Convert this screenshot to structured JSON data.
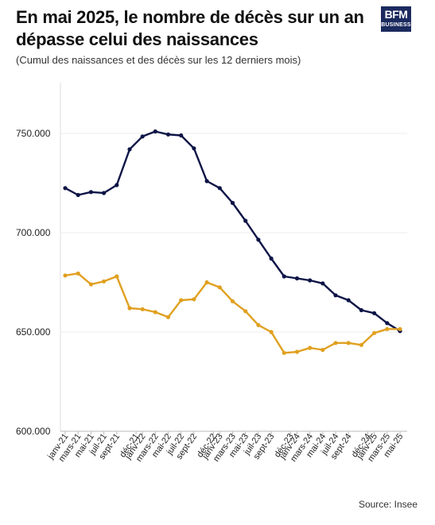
{
  "header": {
    "title": "En mai 2025, le nombre de décès sur un an dépasse celui des naissances",
    "subtitle": "(Cumul des naissances et des décès sur les 12 derniers mois)"
  },
  "logo": {
    "line1": "BFM",
    "line2": "BUSINESS",
    "background": "#1b2a5e"
  },
  "footer": {
    "source": "Source: Insee"
  },
  "chart_data": {
    "type": "line",
    "title": "En mai 2025, le nombre de décès sur un an dépasse celui des naissances",
    "subtitle": "(Cumul des naissances et des décès sur les 12 derniers mois)",
    "xlabel": "",
    "ylabel": "",
    "ylim": [
      600000,
      750000
    ],
    "yticks": [
      "600.000",
      "650.000",
      "700.000",
      "750.000"
    ],
    "y_tick_values": [
      600000,
      650000,
      700000,
      750000
    ],
    "categories": [
      "janv-21",
      "mars-21",
      "mai-21",
      "juil-21",
      "sept-21",
      "déc-21",
      "janv-22",
      "mars-22",
      "mai-22",
      "juil-22",
      "sept-22",
      "déc-22",
      "janv-23",
      "mars-23",
      "mai-23",
      "juil-23",
      "sept-23",
      "déc-23",
      "janv-24",
      "mars-24",
      "mai-24",
      "juil-24",
      "sept-24",
      "déc-24",
      "janv-25",
      "mars-25",
      "mai-25"
    ],
    "x": [
      "janv-21",
      "févr-21",
      "mars-21",
      "avr-21",
      "mai-21",
      "juin-21",
      "juil-21",
      "août-21",
      "sept-21",
      "oct-21",
      "nov-21",
      "déc-21",
      "janv-22",
      "févr-22",
      "mars-22",
      "avr-22",
      "mai-22",
      "juin-22",
      "juil-22",
      "août-22",
      "sept-22",
      "oct-22",
      "nov-22",
      "déc-22",
      "janv-23",
      "févr-23",
      "mars-23",
      "avr-23",
      "mai-23",
      "juin-23",
      "juil-23",
      "août-23",
      "sept-23",
      "oct-23",
      "nov-23",
      "déc-23",
      "janv-24",
      "févr-24",
      "mars-24",
      "avr-24",
      "mai-24",
      "juin-24",
      "juil-24",
      "août-24",
      "sept-24",
      "oct-24",
      "nov-24",
      "déc-24",
      "janv-25",
      "févr-25",
      "mars-25",
      "avr-25",
      "mai-25"
    ],
    "x_tick_index": [
      0,
      2,
      4,
      6,
      8,
      11,
      12,
      14,
      16,
      18,
      20,
      23,
      24,
      26,
      28,
      30,
      32,
      35,
      36,
      38,
      40,
      42,
      44,
      47,
      48,
      50,
      52
    ],
    "point_index": [
      0,
      2,
      4,
      6,
      8,
      10,
      12,
      14,
      16,
      18,
      20,
      22,
      24,
      26,
      28,
      30,
      32,
      34,
      36,
      38,
      40,
      42,
      44,
      46,
      48,
      50,
      52
    ],
    "series": [
      {
        "color": "#0c1446",
        "values": [
          722500,
          719000,
          720500,
          720000,
          724000,
          742000,
          748500,
          751000,
          749500,
          749000,
          742500,
          726000,
          722500,
          715000,
          706000,
          696500,
          687000,
          678000,
          677000,
          676000,
          674500,
          668500,
          666000,
          661000,
          659500,
          654500,
          650500
        ]
      },
      {
        "color": "#e0a020",
        "values": [
          678500,
          679500,
          674000,
          675500,
          678000,
          662000,
          661500,
          660000,
          657500,
          666000,
          666500,
          675000,
          672500,
          665500,
          660500,
          653500,
          650000,
          639500,
          640000,
          642000,
          641000,
          644500,
          644500,
          643500,
          649500,
          651500,
          651500
        ]
      }
    ],
    "grid": true,
    "legend": "none"
  }
}
